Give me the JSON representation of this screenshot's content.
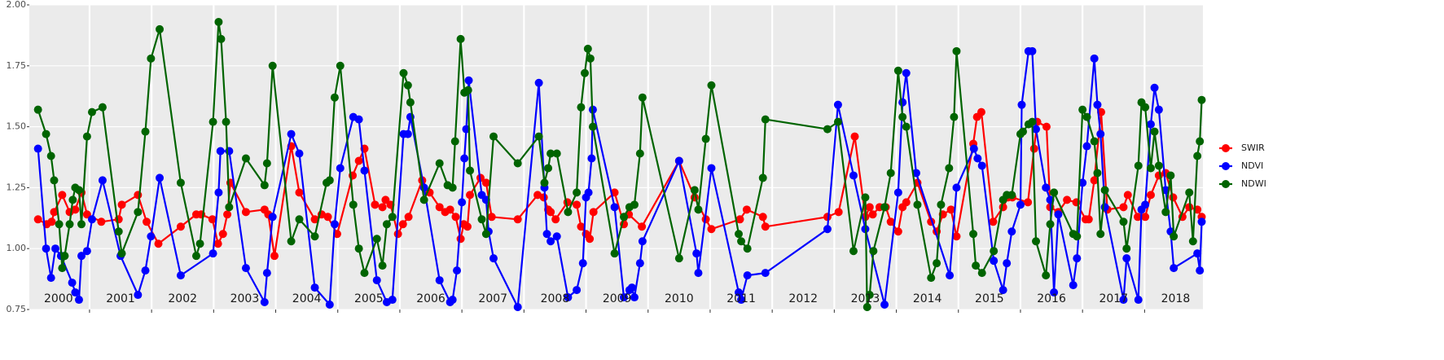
{
  "chart_data": {
    "type": "line",
    "xlim": [
      2000.03,
      2018.94
    ],
    "xticks": [
      2001,
      2002,
      2003,
      2004,
      2005,
      2006,
      2007,
      2008,
      2009,
      2010,
      2011,
      2012,
      2013,
      2014,
      2015,
      2016,
      2017,
      2018
    ],
    "ylim": [
      0.75,
      2.0
    ],
    "yticks": [
      {
        "value": 0.75,
        "label": "0.75"
      },
      {
        "value": 1.0,
        "label": "1.00"
      },
      {
        "value": 1.25,
        "label": "1.25"
      },
      {
        "value": 1.5,
        "label": "1.50"
      },
      {
        "value": 1.75,
        "label": "1.75"
      },
      {
        "value": 2.0,
        "label": "2.00"
      }
    ],
    "grid": true,
    "legend": "right",
    "year_labels": [
      "2000",
      "2001",
      "2002",
      "2003",
      "2004",
      "2005",
      "2006",
      "2007",
      "2008",
      "2009",
      "2010",
      "2011",
      "2012",
      "2013",
      "2014",
      "2015",
      "2016",
      "2017",
      "2018"
    ],
    "series": [
      {
        "name": "SWIR",
        "color": "#ff0000",
        "x": [
          2000.17,
          2000.31,
          2000.39,
          2000.43,
          2000.56,
          2000.68,
          2000.77,
          2000.87,
          2000.96,
          2001.19,
          2001.47,
          2001.52,
          2001.78,
          2001.92,
          2002.11,
          2002.47,
          2002.72,
          2002.8,
          2002.98,
          2003.07,
          2003.15,
          2003.22,
          2003.27,
          2003.52,
          2003.82,
          2003.88,
          2003.98,
          2004.25,
          2004.38,
          2004.63,
          2004.74,
          2004.84,
          2004.99,
          2005.24,
          2005.34,
          2005.43,
          2005.6,
          2005.72,
          2005.77,
          2005.85,
          2005.97,
          2006.05,
          2006.14,
          2006.36,
          2006.48,
          2006.64,
          2006.73,
          2006.81,
          2006.9,
          2006.98,
          2007.03,
          2007.09,
          2007.13,
          2007.3,
          2007.39,
          2007.48,
          2007.9,
          2008.22,
          2008.32,
          2008.39,
          2008.43,
          2008.51,
          2008.7,
          2008.85,
          2008.92,
          2009.0,
          2009.06,
          2009.12,
          2009.46,
          2009.61,
          2009.69,
          2009.9,
          2010.5,
          2010.75,
          2010.93,
          2011.02,
          2011.48,
          2011.59,
          2011.85,
          2011.89,
          2012.89,
          2013.07,
          2013.33,
          2013.5,
          2013.57,
          2013.62,
          2013.73,
          2013.83,
          2013.91,
          2014.03,
          2014.1,
          2014.16,
          2014.34,
          2014.56,
          2014.65,
          2014.75,
          2014.88,
          2014.97,
          2015.24,
          2015.3,
          2015.37,
          2015.56,
          2015.72,
          2015.8,
          2015.87,
          2016.12,
          2016.22,
          2016.27,
          2016.42,
          2016.48,
          2016.61,
          2016.75,
          2016.9,
          2017.05,
          2017.1,
          2017.19,
          2017.3,
          2017.4,
          2017.66,
          2017.73,
          2017.89,
          2018.01,
          2018.1,
          2018.23,
          2018.34,
          2018.46,
          2018.61,
          2018.72,
          2018.85,
          2018.92
        ],
        "values": [
          1.12,
          1.1,
          1.11,
          1.15,
          1.22,
          1.15,
          1.16,
          1.23,
          1.14,
          1.11,
          1.12,
          1.18,
          1.22,
          1.11,
          1.02,
          1.09,
          1.14,
          1.14,
          1.12,
          1.02,
          1.06,
          1.14,
          1.27,
          1.15,
          1.16,
          1.14,
          0.97,
          1.42,
          1.23,
          1.12,
          1.14,
          1.13,
          1.06,
          1.3,
          1.36,
          1.41,
          1.18,
          1.17,
          1.2,
          1.18,
          1.06,
          1.1,
          1.13,
          1.28,
          1.23,
          1.17,
          1.15,
          1.16,
          1.13,
          1.04,
          1.1,
          1.09,
          1.22,
          1.29,
          1.27,
          1.13,
          1.12,
          1.22,
          1.21,
          1.16,
          1.15,
          1.12,
          1.19,
          1.18,
          1.09,
          1.06,
          1.04,
          1.15,
          1.23,
          1.1,
          1.14,
          1.09,
          1.36,
          1.21,
          1.12,
          1.08,
          1.12,
          1.16,
          1.13,
          1.09,
          1.13,
          1.15,
          1.46,
          1.13,
          1.17,
          1.14,
          1.17,
          1.17,
          1.11,
          1.07,
          1.17,
          1.19,
          1.27,
          1.11,
          1.07,
          1.14,
          1.16,
          1.05,
          1.43,
          1.54,
          1.56,
          1.11,
          1.17,
          1.21,
          1.21,
          1.19,
          1.41,
          1.52,
          1.5,
          1.17,
          1.15,
          1.2,
          1.19,
          1.12,
          1.12,
          1.28,
          1.56,
          1.16,
          1.17,
          1.22,
          1.13,
          1.13,
          1.22,
          1.3,
          1.31,
          1.21,
          1.13,
          1.17,
          1.16,
          1.13
        ]
      },
      {
        "name": "NDVI",
        "color": "#0000ff",
        "x": [
          2000.17,
          2000.3,
          2000.38,
          2000.45,
          2000.54,
          2000.72,
          2000.77,
          2000.83,
          2000.87,
          2000.96,
          2001.04,
          2001.21,
          2001.5,
          2001.78,
          2001.9,
          2001.99,
          2002.13,
          2002.47,
          2002.99,
          2003.08,
          2003.11,
          2003.25,
          2003.52,
          2003.82,
          2003.86,
          2003.95,
          2004.25,
          2004.38,
          2004.63,
          2004.87,
          2004.95,
          2005.04,
          2005.25,
          2005.34,
          2005.43,
          2005.63,
          2005.79,
          2005.88,
          2006.06,
          2006.13,
          2006.17,
          2006.39,
          2006.64,
          2006.81,
          2006.85,
          2006.92,
          2007.0,
          2007.04,
          2007.07,
          2007.11,
          2007.32,
          2007.39,
          2007.43,
          2007.51,
          2007.9,
          2008.24,
          2008.33,
          2008.37,
          2008.43,
          2008.53,
          2008.71,
          2008.85,
          2008.95,
          2009.0,
          2009.04,
          2009.09,
          2009.11,
          2009.46,
          2009.61,
          2009.7,
          2009.74,
          2009.78,
          2009.87,
          2009.91,
          2010.5,
          2010.78,
          2010.81,
          2011.02,
          2011.46,
          2011.5,
          2011.6,
          2011.89,
          2012.89,
          2013.06,
          2013.31,
          2013.5,
          2013.81,
          2014.03,
          2014.1,
          2014.16,
          2014.32,
          2014.86,
          2014.97,
          2015.25,
          2015.31,
          2015.38,
          2015.57,
          2015.72,
          2015.78,
          2015.86,
          2016.0,
          2016.02,
          2016.13,
          2016.19,
          2016.25,
          2016.41,
          2016.48,
          2016.54,
          2016.61,
          2016.85,
          2016.91,
          2017.0,
          2017.07,
          2017.19,
          2017.24,
          2017.29,
          2017.36,
          2017.66,
          2017.71,
          2017.9,
          2017.95,
          2018.01,
          2018.1,
          2018.16,
          2018.23,
          2018.34,
          2018.42,
          2018.47,
          2018.85,
          2018.89,
          2018.92
        ],
        "values": [
          1.41,
          1.0,
          0.88,
          1.0,
          0.97,
          0.86,
          0.82,
          0.79,
          0.97,
          0.99,
          1.12,
          1.28,
          0.97,
          0.81,
          0.91,
          1.05,
          1.29,
          0.89,
          0.98,
          1.23,
          1.4,
          1.4,
          0.92,
          0.78,
          0.9,
          1.13,
          1.47,
          1.39,
          0.84,
          0.77,
          1.1,
          1.33,
          1.54,
          1.53,
          1.32,
          0.87,
          0.78,
          0.79,
          1.47,
          1.47,
          1.54,
          1.25,
          0.87,
          0.78,
          0.79,
          0.91,
          1.19,
          1.37,
          1.49,
          1.69,
          1.22,
          1.2,
          1.07,
          0.96,
          0.76,
          1.68,
          1.25,
          1.06,
          1.03,
          1.05,
          0.8,
          0.83,
          0.94,
          1.21,
          1.23,
          1.37,
          1.57,
          1.17,
          0.8,
          0.83,
          0.84,
          0.8,
          0.94,
          1.03,
          1.36,
          0.98,
          0.9,
          1.33,
          0.82,
          0.79,
          0.89,
          0.9,
          1.08,
          1.59,
          1.3,
          1.08,
          0.77,
          1.23,
          1.6,
          1.72,
          1.31,
          0.89,
          1.25,
          1.41,
          1.37,
          1.34,
          0.95,
          0.83,
          0.94,
          1.07,
          1.18,
          1.59,
          1.81,
          1.81,
          1.49,
          1.25,
          1.2,
          0.82,
          1.14,
          0.85,
          0.96,
          1.27,
          1.42,
          1.78,
          1.59,
          1.47,
          1.17,
          0.79,
          0.96,
          0.79,
          1.16,
          1.18,
          1.51,
          1.66,
          1.57,
          1.24,
          1.07,
          0.92,
          0.98,
          0.91,
          1.11
        ]
      },
      {
        "name": "NDWI",
        "color": "#006400",
        "x": [
          2000.17,
          2000.3,
          2000.38,
          2000.43,
          2000.51,
          2000.56,
          2000.6,
          2000.68,
          2000.73,
          2000.77,
          2000.83,
          2000.87,
          2000.96,
          2001.04,
          2001.21,
          2001.47,
          2001.52,
          2001.78,
          2001.9,
          2001.99,
          2002.13,
          2002.47,
          2002.72,
          2002.78,
          2002.99,
          2003.08,
          2003.12,
          2003.2,
          2003.25,
          2003.52,
          2003.82,
          2003.86,
          2003.95,
          2004.25,
          2004.38,
          2004.63,
          2004.82,
          2004.87,
          2004.95,
          2005.04,
          2005.25,
          2005.34,
          2005.43,
          2005.63,
          2005.72,
          2005.79,
          2005.88,
          2006.06,
          2006.13,
          2006.17,
          2006.39,
          2006.64,
          2006.77,
          2006.85,
          2006.89,
          2006.98,
          2007.04,
          2007.1,
          2007.13,
          2007.32,
          2007.39,
          2007.51,
          2007.9,
          2008.24,
          2008.33,
          2008.39,
          2008.43,
          2008.53,
          2008.71,
          2008.85,
          2008.92,
          2008.98,
          2009.03,
          2009.07,
          2009.11,
          2009.46,
          2009.61,
          2009.7,
          2009.78,
          2009.87,
          2009.91,
          2010.5,
          2010.75,
          2010.81,
          2010.93,
          2011.02,
          2011.46,
          2011.5,
          2011.6,
          2011.85,
          2011.89,
          2012.89,
          2013.06,
          2013.31,
          2013.5,
          2013.53,
          2013.57,
          2013.63,
          2013.81,
          2013.91,
          2014.03,
          2014.1,
          2014.16,
          2014.34,
          2014.56,
          2014.65,
          2014.72,
          2014.85,
          2014.93,
          2014.97,
          2015.24,
          2015.28,
          2015.38,
          2015.57,
          2015.72,
          2015.78,
          2015.86,
          2016.0,
          2016.04,
          2016.13,
          2016.19,
          2016.25,
          2016.41,
          2016.48,
          2016.54,
          2016.85,
          2016.91,
          2017.0,
          2017.07,
          2017.19,
          2017.24,
          2017.29,
          2017.36,
          2017.66,
          2017.71,
          2017.9,
          2017.95,
          2018.01,
          2018.1,
          2018.16,
          2018.23,
          2018.34,
          2018.42,
          2018.47,
          2018.72,
          2018.78,
          2018.85,
          2018.89,
          2018.92
        ],
        "values": [
          1.57,
          1.47,
          1.38,
          1.28,
          1.1,
          0.92,
          0.97,
          1.1,
          1.2,
          1.25,
          1.24,
          1.1,
          1.46,
          1.56,
          1.58,
          1.07,
          0.98,
          1.15,
          1.48,
          1.78,
          1.9,
          1.27,
          0.97,
          1.02,
          1.52,
          1.93,
          1.86,
          1.52,
          1.17,
          1.37,
          1.26,
          1.35,
          1.75,
          1.03,
          1.12,
          1.05,
          1.27,
          1.28,
          1.62,
          1.75,
          1.18,
          1.0,
          0.9,
          1.04,
          0.93,
          1.1,
          1.13,
          1.72,
          1.67,
          1.6,
          1.2,
          1.35,
          1.26,
          1.25,
          1.44,
          1.86,
          1.64,
          1.65,
          1.32,
          1.12,
          1.06,
          1.46,
          1.35,
          1.46,
          1.27,
          1.33,
          1.39,
          1.39,
          1.15,
          1.23,
          1.58,
          1.72,
          1.82,
          1.78,
          1.5,
          0.98,
          1.13,
          1.17,
          1.18,
          1.39,
          1.62,
          0.96,
          1.24,
          1.16,
          1.45,
          1.67,
          1.06,
          1.03,
          1.0,
          1.29,
          1.53,
          1.49,
          1.52,
          0.99,
          1.21,
          0.76,
          0.81,
          0.99,
          1.17,
          1.31,
          1.73,
          1.54,
          1.5,
          1.18,
          0.88,
          0.94,
          1.18,
          1.33,
          1.54,
          1.81,
          1.06,
          0.93,
          0.9,
          0.99,
          1.2,
          1.22,
          1.22,
          1.47,
          1.48,
          1.51,
          1.52,
          1.03,
          0.89,
          1.1,
          1.23,
          1.06,
          1.05,
          1.57,
          1.54,
          1.44,
          1.31,
          1.06,
          1.24,
          1.11,
          1.0,
          1.34,
          1.6,
          1.58,
          1.33,
          1.48,
          1.34,
          1.15,
          1.3,
          1.05,
          1.23,
          1.03,
          1.38,
          1.44,
          1.61
        ]
      }
    ]
  }
}
